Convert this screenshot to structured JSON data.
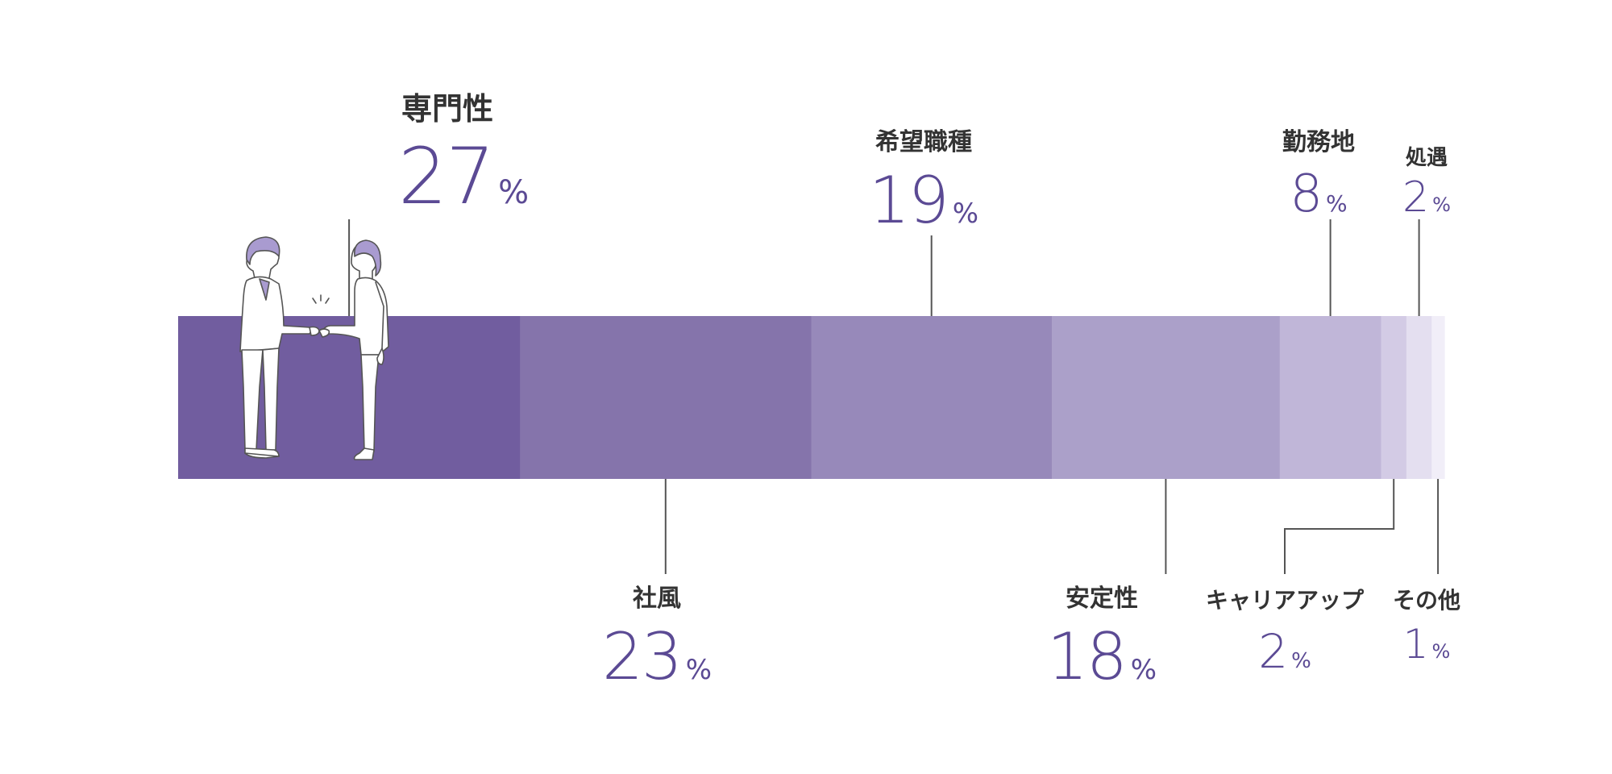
{
  "chart_data": {
    "type": "bar",
    "orientation": "stacked-horizontal-100",
    "unit": "%",
    "categories": [
      "専門性",
      "社風",
      "希望職種",
      "安定性",
      "勤務地",
      "キャリアアップ",
      "処遇",
      "その他"
    ],
    "values": [
      27,
      23,
      19,
      18,
      8,
      2,
      2,
      1
    ],
    "colors": [
      "#715d9f",
      "#8574ab",
      "#9789ba",
      "#aba0c9",
      "#c0b6d8",
      "#d3cbe5",
      "#e4dff0",
      "#f1eef8"
    ],
    "label_positions": [
      "top",
      "bottom",
      "top",
      "bottom",
      "top",
      "bottom",
      "top",
      "bottom"
    ]
  },
  "illustration": {
    "name": "handshake-illustration",
    "accent_color": "#a99bd0"
  }
}
